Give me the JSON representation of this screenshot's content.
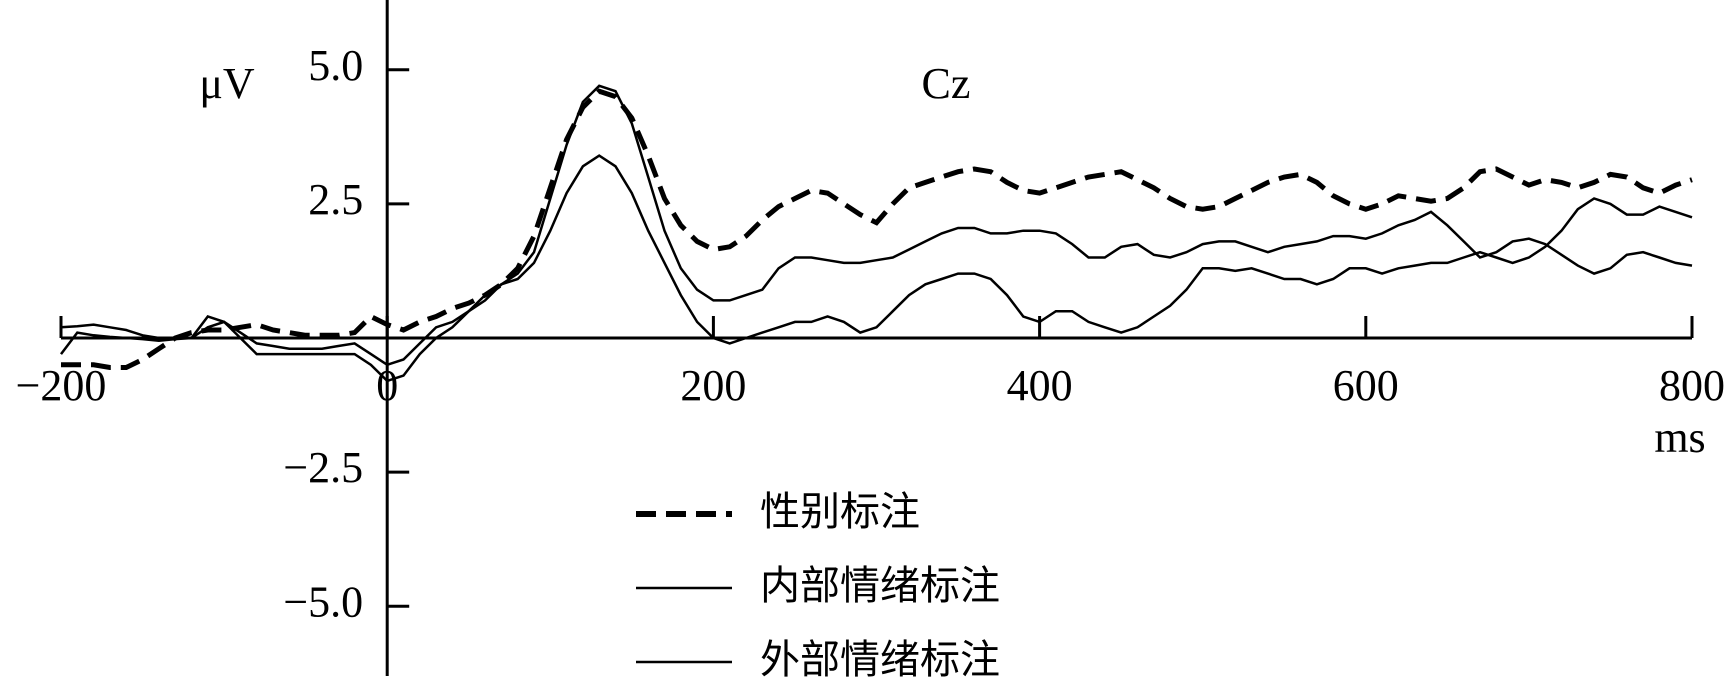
{
  "chart_data": {
    "type": "line",
    "title": "Cz",
    "y_label": "μV",
    "x_label": "ms",
    "x": [
      -200,
      -190,
      -180,
      -170,
      -160,
      -150,
      -140,
      -130,
      -120,
      -110,
      -100,
      -90,
      -80,
      -70,
      -60,
      -50,
      -40,
      -30,
      -20,
      -10,
      0,
      10,
      20,
      30,
      40,
      50,
      60,
      70,
      80,
      90,
      100,
      110,
      120,
      130,
      140,
      150,
      160,
      170,
      180,
      190,
      200,
      210,
      220,
      230,
      240,
      250,
      260,
      270,
      280,
      290,
      300,
      310,
      320,
      330,
      340,
      350,
      360,
      370,
      380,
      390,
      400,
      410,
      420,
      430,
      440,
      450,
      460,
      470,
      480,
      490,
      500,
      510,
      520,
      530,
      540,
      550,
      560,
      570,
      580,
      590,
      600,
      610,
      620,
      630,
      640,
      650,
      660,
      670,
      680,
      690,
      700,
      710,
      720,
      730,
      740,
      750,
      760,
      770,
      780,
      790,
      800
    ],
    "series": [
      {
        "name": "性别标注",
        "color": "#000000",
        "line_style": "dashed",
        "values": [
          -0.5,
          -0.5,
          -0.5,
          -0.55,
          -0.55,
          -0.4,
          -0.2,
          0.0,
          0.1,
          0.15,
          0.15,
          0.2,
          0.25,
          0.15,
          0.1,
          0.05,
          0.05,
          0.05,
          0.1,
          0.4,
          0.25,
          0.15,
          0.3,
          0.4,
          0.55,
          0.65,
          0.8,
          1.0,
          1.3,
          1.9,
          2.8,
          3.7,
          4.3,
          4.6,
          4.5,
          4.1,
          3.4,
          2.6,
          2.1,
          1.8,
          1.65,
          1.7,
          1.9,
          2.2,
          2.45,
          2.6,
          2.75,
          2.7,
          2.5,
          2.3,
          2.15,
          2.5,
          2.8,
          2.9,
          3.0,
          3.1,
          3.15,
          3.1,
          2.9,
          2.75,
          2.7,
          2.8,
          2.9,
          3.0,
          3.05,
          3.1,
          2.95,
          2.8,
          2.6,
          2.45,
          2.4,
          2.45,
          2.6,
          2.75,
          2.9,
          3.0,
          3.05,
          2.9,
          2.65,
          2.5,
          2.4,
          2.5,
          2.65,
          2.6,
          2.55,
          2.6,
          2.8,
          3.1,
          3.15,
          3.0,
          2.85,
          2.95,
          2.9,
          2.8,
          2.9,
          3.05,
          3.0,
          2.8,
          2.7,
          2.85,
          2.95
        ]
      },
      {
        "name": "内部情绪标注",
        "color": "#000000",
        "line_style": "solid",
        "values": [
          0.2,
          0.22,
          0.25,
          0.2,
          0.15,
          0.05,
          0.0,
          0.0,
          0.0,
          0.2,
          0.3,
          0.1,
          -0.1,
          -0.15,
          -0.2,
          -0.2,
          -0.2,
          -0.15,
          -0.1,
          -0.3,
          -0.5,
          -0.4,
          -0.1,
          0.2,
          0.3,
          0.5,
          0.7,
          1.0,
          1.2,
          1.6,
          2.6,
          3.6,
          4.4,
          4.7,
          4.6,
          4.0,
          3.0,
          2.0,
          1.3,
          0.9,
          0.7,
          0.7,
          0.8,
          0.9,
          1.3,
          1.5,
          1.5,
          1.45,
          1.4,
          1.4,
          1.45,
          1.5,
          1.65,
          1.8,
          1.95,
          2.05,
          2.05,
          1.95,
          1.95,
          2.0,
          2.0,
          1.95,
          1.75,
          1.5,
          1.5,
          1.7,
          1.75,
          1.55,
          1.5,
          1.6,
          1.75,
          1.8,
          1.8,
          1.7,
          1.6,
          1.7,
          1.75,
          1.8,
          1.9,
          1.9,
          1.85,
          1.95,
          2.1,
          2.2,
          2.35,
          2.1,
          1.8,
          1.5,
          1.6,
          1.8,
          1.85,
          1.75,
          1.55,
          1.35,
          1.2,
          1.3,
          1.55,
          1.6,
          1.5,
          1.4,
          1.35
        ]
      },
      {
        "name": "外部情绪标注",
        "color": "#000000",
        "line_style": "solid",
        "values": [
          -0.3,
          0.1,
          0.05,
          0.02,
          0.0,
          -0.02,
          -0.05,
          -0.02,
          0.0,
          0.4,
          0.3,
          0.0,
          -0.3,
          -0.3,
          -0.3,
          -0.3,
          -0.3,
          -0.3,
          -0.3,
          -0.5,
          -0.8,
          -0.7,
          -0.3,
          0.0,
          0.2,
          0.5,
          0.8,
          1.0,
          1.1,
          1.4,
          2.0,
          2.7,
          3.2,
          3.4,
          3.2,
          2.7,
          2.0,
          1.4,
          0.8,
          0.3,
          0.0,
          -0.1,
          0.0,
          0.1,
          0.2,
          0.3,
          0.3,
          0.4,
          0.3,
          0.1,
          0.2,
          0.5,
          0.8,
          1.0,
          1.1,
          1.2,
          1.2,
          1.1,
          0.8,
          0.4,
          0.3,
          0.5,
          0.5,
          0.3,
          0.2,
          0.1,
          0.2,
          0.4,
          0.6,
          0.9,
          1.3,
          1.3,
          1.25,
          1.3,
          1.2,
          1.1,
          1.1,
          1.0,
          1.1,
          1.3,
          1.3,
          1.2,
          1.3,
          1.35,
          1.4,
          1.4,
          1.5,
          1.6,
          1.5,
          1.4,
          1.5,
          1.7,
          2.0,
          2.4,
          2.6,
          2.5,
          2.3,
          2.3,
          2.45,
          2.35,
          2.25
        ]
      }
    ],
    "xlim": [
      -200,
      800
    ],
    "ylim": [
      -6.3,
      6.3
    ],
    "xticks": [
      {
        "value": -200,
        "label": "−200"
      },
      0,
      200,
      400,
      600,
      800
    ],
    "yticks": [
      {
        "value": 5,
        "label": "5.0"
      },
      2.5,
      {
        "value": -2.5,
        "label": "−2.5"
      },
      {
        "value": -5,
        "label": "−5.0"
      }
    ]
  }
}
